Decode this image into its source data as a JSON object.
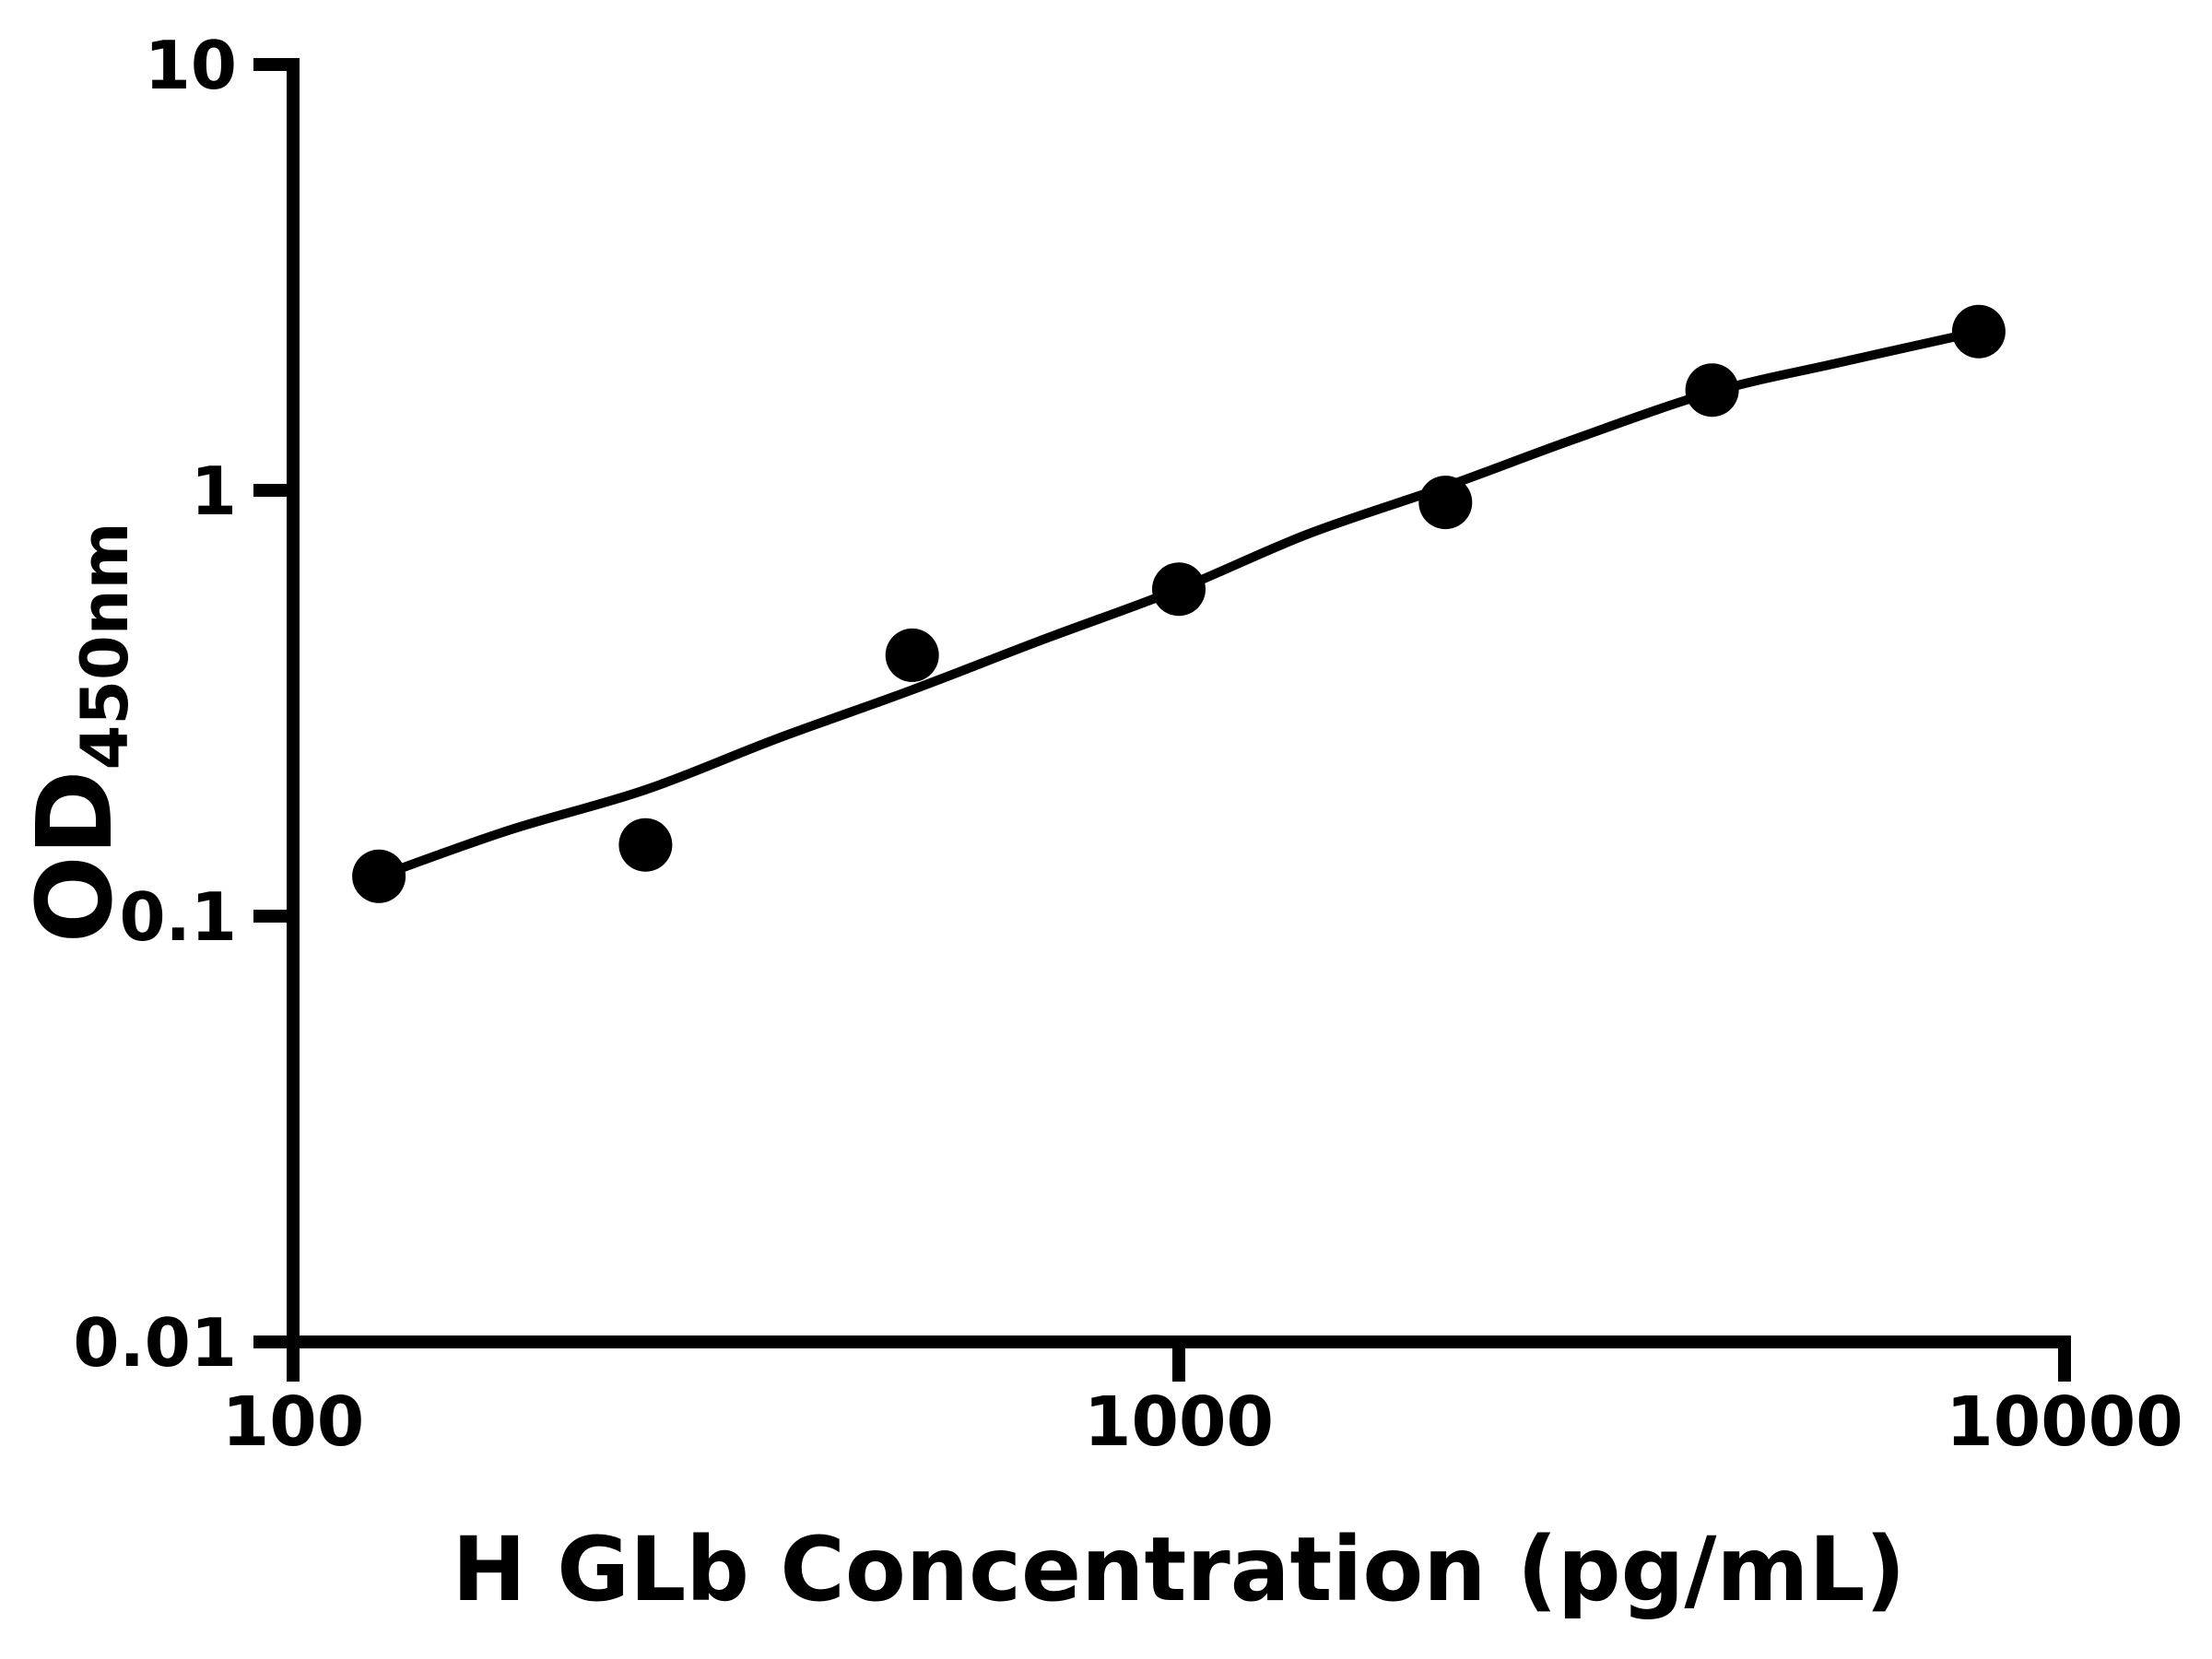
{
  "page": {
    "background_color": "#ffffff",
    "foreground_color": "#000000"
  },
  "chart_data": {
    "type": "scatter",
    "title": "",
    "xlabel": "H GLb Concentration (pg/mL)",
    "ylabel": "OD450nm",
    "ylabel_main": "OD",
    "ylabel_sub": "450nm",
    "x_scale": "log10",
    "y_scale": "log10",
    "xlim": [
      100,
      10000
    ],
    "ylim": [
      0.01,
      10
    ],
    "grid": false,
    "legend": false,
    "x_ticks": [
      {
        "value": 100,
        "label": "100"
      },
      {
        "value": 1000,
        "label": "1000"
      },
      {
        "value": 10000,
        "label": "10000"
      }
    ],
    "y_ticks": [
      {
        "value": 0.01,
        "label": "0.01"
      },
      {
        "value": 0.1,
        "label": "0.1"
      },
      {
        "value": 1,
        "label": "1"
      },
      {
        "value": 10,
        "label": "10"
      }
    ],
    "marker": {
      "shape": "circle",
      "color": "#000000",
      "radius_px": 29
    },
    "line": {
      "color": "#000000",
      "style": "4PL-fit"
    },
    "points": [
      {
        "x": 125,
        "od": 0.124
      },
      {
        "x": 250,
        "od": 0.147
      },
      {
        "x": 500,
        "od": 0.41
      },
      {
        "x": 1000,
        "od": 0.586
      },
      {
        "x": 2000,
        "od": 0.937
      },
      {
        "x": 4000,
        "od": 1.72
      },
      {
        "x": 8000,
        "od": 2.36
      }
    ],
    "fit_curve": [
      [
        125,
        0.124
      ],
      [
        175,
        0.159
      ],
      [
        250,
        0.198
      ],
      [
        350,
        0.26
      ],
      [
        500,
        0.34
      ],
      [
        700,
        0.445
      ],
      [
        1000,
        0.586
      ],
      [
        1400,
        0.79
      ],
      [
        2000,
        1.02
      ],
      [
        2800,
        1.32
      ],
      [
        4000,
        1.7
      ],
      [
        5600,
        2.0
      ],
      [
        8000,
        2.36
      ]
    ]
  }
}
